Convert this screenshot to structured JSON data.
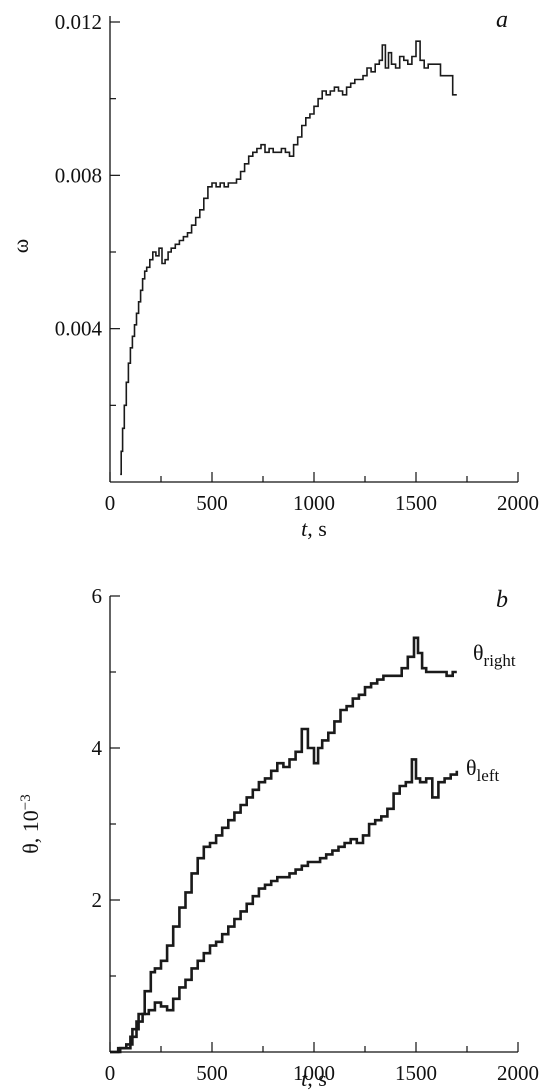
{
  "chart_data": [
    {
      "panel_label": "a",
      "type": "line",
      "step": true,
      "xlabel_var": "t",
      "xlabel_unit": ", s",
      "ylabel": "ω",
      "xlim": [
        0,
        2000
      ],
      "ylim": [
        0,
        0.012
      ],
      "xticks_major": [
        0,
        500,
        1000,
        1500,
        2000
      ],
      "xticks_minor": [
        250,
        750,
        1250,
        1750
      ],
      "yticks_major": [
        0.004,
        0.008,
        0.012
      ],
      "ytick_labels": [
        "0.004",
        "0.008",
        "0.012"
      ],
      "yticks_minor": [
        0.002,
        0.006,
        0.01
      ],
      "series": [
        {
          "x": [
            50,
            55,
            62,
            70,
            80,
            90,
            100,
            110,
            120,
            130,
            140,
            150,
            160,
            170,
            180,
            195,
            210,
            225,
            240,
            255,
            270,
            285,
            300,
            320,
            340,
            360,
            380,
            400,
            420,
            440,
            460,
            480,
            500,
            520,
            540,
            560,
            580,
            600,
            620,
            640,
            660,
            680,
            700,
            720,
            740,
            760,
            780,
            800,
            820,
            840,
            860,
            880,
            900,
            920,
            940,
            960,
            980,
            1000,
            1020,
            1040,
            1060,
            1080,
            1100,
            1120,
            1140,
            1160,
            1180,
            1200,
            1220,
            1240,
            1260,
            1280,
            1300,
            1320,
            1335,
            1350,
            1365,
            1380,
            1400,
            1420,
            1440,
            1460,
            1480,
            1500,
            1520,
            1540,
            1560,
            1580,
            1600,
            1620,
            1640,
            1660,
            1680,
            1700
          ],
          "y": [
            0.0002,
            0.0008,
            0.0014,
            0.002,
            0.0026,
            0.0031,
            0.0035,
            0.0038,
            0.0041,
            0.0044,
            0.0047,
            0.005,
            0.0053,
            0.0055,
            0.0056,
            0.0058,
            0.006,
            0.0059,
            0.0061,
            0.0057,
            0.0058,
            0.006,
            0.0061,
            0.0062,
            0.0063,
            0.0064,
            0.0065,
            0.0067,
            0.0069,
            0.0071,
            0.0074,
            0.0077,
            0.0078,
            0.0077,
            0.0078,
            0.0077,
            0.0078,
            0.0078,
            0.0079,
            0.0081,
            0.0083,
            0.0085,
            0.0086,
            0.0087,
            0.0088,
            0.0086,
            0.0087,
            0.0086,
            0.0086,
            0.0087,
            0.0086,
            0.0085,
            0.0088,
            0.009,
            0.0093,
            0.0095,
            0.0096,
            0.0098,
            0.01,
            0.0102,
            0.0101,
            0.0102,
            0.0103,
            0.0102,
            0.0101,
            0.0103,
            0.0104,
            0.0105,
            0.0105,
            0.0106,
            0.0108,
            0.0107,
            0.0109,
            0.011,
            0.0114,
            0.0108,
            0.0112,
            0.0109,
            0.0108,
            0.0111,
            0.011,
            0.0109,
            0.0111,
            0.0115,
            0.011,
            0.0108,
            0.0109,
            0.0109,
            0.0109,
            0.0106,
            0.0106,
            0.0106,
            0.0101,
            0.0101
          ]
        }
      ]
    },
    {
      "panel_label": "b",
      "type": "line",
      "step": true,
      "xlabel_var": "t",
      "xlabel_unit": ", s",
      "ylabel_sym": "θ",
      "ylabel_rest": ", 10",
      "ylabel_exp": "−3",
      "xlim": [
        0,
        2000
      ],
      "ylim": [
        0,
        6
      ],
      "xticks_major": [
        0,
        500,
        1000,
        1500,
        2000
      ],
      "xticks_minor": [
        250,
        750,
        1250,
        1750
      ],
      "yticks_major": [
        2,
        4,
        6
      ],
      "ytick_labels": [
        "2",
        "4",
        "6"
      ],
      "yticks_minor": [
        1,
        3,
        5
      ],
      "series": [
        {
          "label_sym": "θ",
          "label_sub": "right",
          "x": [
            0,
            40,
            80,
            110,
            140,
            170,
            200,
            220,
            250,
            280,
            310,
            340,
            370,
            400,
            430,
            460,
            490,
            520,
            550,
            580,
            610,
            640,
            670,
            700,
            730,
            760,
            790,
            820,
            850,
            880,
            910,
            940,
            970,
            1000,
            1020,
            1040,
            1070,
            1100,
            1130,
            1160,
            1190,
            1220,
            1250,
            1280,
            1310,
            1340,
            1370,
            1400,
            1430,
            1460,
            1490,
            1510,
            1530,
            1550,
            1580,
            1620,
            1650,
            1680,
            1700
          ],
          "y": [
            0.0,
            0.05,
            0.1,
            0.3,
            0.5,
            0.8,
            1.05,
            1.1,
            1.2,
            1.4,
            1.65,
            1.9,
            2.1,
            2.35,
            2.55,
            2.7,
            2.75,
            2.85,
            2.95,
            3.05,
            3.15,
            3.25,
            3.35,
            3.45,
            3.55,
            3.6,
            3.7,
            3.8,
            3.75,
            3.85,
            3.95,
            4.25,
            4.0,
            3.8,
            4.0,
            4.1,
            4.2,
            4.35,
            4.5,
            4.55,
            4.65,
            4.7,
            4.8,
            4.85,
            4.9,
            4.95,
            4.95,
            4.95,
            5.05,
            5.2,
            5.45,
            5.25,
            5.05,
            5.0,
            5.0,
            5.0,
            4.95,
            5.0,
            5.0
          ]
        },
        {
          "label_sym": "θ",
          "label_sub": "left",
          "x": [
            0,
            50,
            100,
            130,
            160,
            190,
            220,
            250,
            280,
            310,
            340,
            370,
            400,
            430,
            460,
            490,
            520,
            550,
            580,
            610,
            640,
            670,
            700,
            730,
            760,
            790,
            820,
            850,
            880,
            910,
            940,
            970,
            1000,
            1030,
            1060,
            1090,
            1120,
            1150,
            1180,
            1210,
            1240,
            1270,
            1300,
            1330,
            1360,
            1390,
            1420,
            1450,
            1480,
            1500,
            1520,
            1550,
            1580,
            1610,
            1640,
            1670,
            1700
          ],
          "y": [
            0.0,
            0.05,
            0.2,
            0.4,
            0.5,
            0.55,
            0.65,
            0.6,
            0.55,
            0.7,
            0.85,
            0.95,
            1.1,
            1.2,
            1.3,
            1.4,
            1.45,
            1.55,
            1.65,
            1.75,
            1.85,
            1.95,
            2.05,
            2.15,
            2.2,
            2.25,
            2.3,
            2.3,
            2.35,
            2.4,
            2.45,
            2.5,
            2.5,
            2.55,
            2.6,
            2.65,
            2.7,
            2.75,
            2.8,
            2.75,
            2.85,
            3.0,
            3.05,
            3.1,
            3.2,
            3.4,
            3.5,
            3.55,
            3.85,
            3.6,
            3.55,
            3.6,
            3.35,
            3.55,
            3.6,
            3.65,
            3.7
          ]
        }
      ]
    }
  ]
}
